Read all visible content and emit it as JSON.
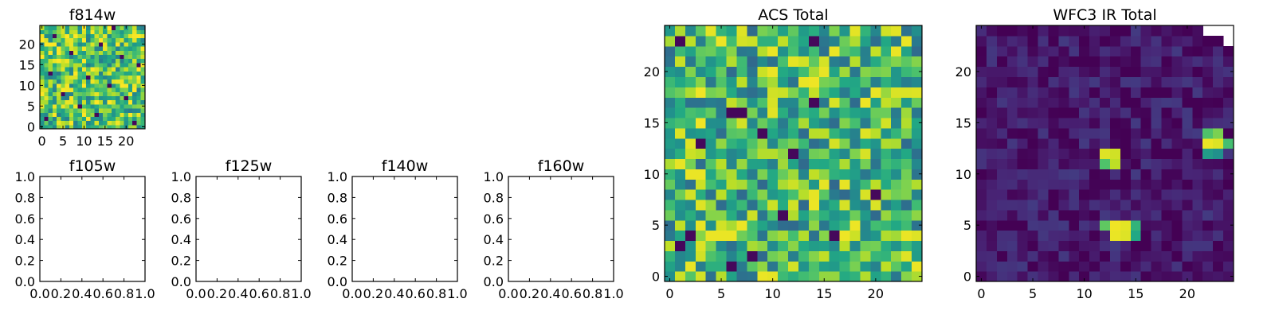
{
  "chart_data": [
    {
      "id": "f814w",
      "type": "heatmap",
      "title": "f814w",
      "colormap": "viridis",
      "xticks": [
        "0",
        "5",
        "10",
        "15",
        "20"
      ],
      "yticks": [
        "0",
        "5",
        "10",
        "15",
        "20"
      ],
      "xlim": [
        -0.5,
        24.5
      ],
      "ylim": [
        -0.5,
        24.5
      ],
      "grid": false,
      "grid_size": [
        25,
        25
      ],
      "value_range": [
        0,
        1
      ],
      "seed": 11,
      "base": 0.72,
      "spread": 0.3,
      "dark_cells": [
        [
          3,
          22
        ],
        [
          14,
          20
        ],
        [
          7,
          18
        ],
        [
          19,
          17
        ],
        [
          23,
          15
        ],
        [
          2,
          13
        ],
        [
          11,
          12
        ],
        [
          16,
          10
        ],
        [
          5,
          8
        ],
        [
          20,
          7
        ],
        [
          9,
          5
        ],
        [
          13,
          3
        ],
        [
          1,
          2
        ],
        [
          22,
          1
        ],
        [
          17,
          24
        ]
      ],
      "bright_cells": [
        [
          6,
          6
        ],
        [
          7,
          6
        ],
        [
          8,
          5
        ],
        [
          5,
          5
        ],
        [
          15,
          19
        ],
        [
          22,
          23
        ],
        [
          3,
          16
        ],
        [
          18,
          11
        ]
      ]
    },
    {
      "id": "f105w",
      "type": "heatmap",
      "title": "f105w",
      "empty": true,
      "xticks": [
        "0.0",
        "0.2",
        "0.4",
        "0.6",
        "0.8",
        "1.0"
      ],
      "yticks": [
        "0.0",
        "0.2",
        "0.4",
        "0.6",
        "0.8",
        "1.0"
      ],
      "xlim": [
        0,
        1
      ],
      "ylim": [
        0,
        1
      ]
    },
    {
      "id": "f125w",
      "type": "heatmap",
      "title": "f125w",
      "empty": true,
      "xticks": [
        "0.0",
        "0.2",
        "0.4",
        "0.6",
        "0.8",
        "1.0"
      ],
      "yticks": [
        "0.0",
        "0.2",
        "0.4",
        "0.6",
        "0.8",
        "1.0"
      ],
      "xlim": [
        0,
        1
      ],
      "ylim": [
        0,
        1
      ]
    },
    {
      "id": "f140w",
      "type": "heatmap",
      "title": "f140w",
      "empty": true,
      "xticks": [
        "0.0",
        "0.2",
        "0.4",
        "0.6",
        "0.8",
        "1.0"
      ],
      "yticks": [
        "0.0",
        "0.2",
        "0.4",
        "0.6",
        "0.8",
        "1.0"
      ],
      "xlim": [
        0,
        1
      ],
      "ylim": [
        0,
        1
      ]
    },
    {
      "id": "f160w",
      "type": "heatmap",
      "title": "f160w",
      "empty": true,
      "xticks": [
        "0.0",
        "0.2",
        "0.4",
        "0.6",
        "0.8",
        "1.0"
      ],
      "yticks": [
        "0.0",
        "0.2",
        "0.4",
        "0.6",
        "0.8",
        "1.0"
      ],
      "xlim": [
        0,
        1
      ],
      "ylim": [
        0,
        1
      ]
    },
    {
      "id": "acs-total",
      "type": "heatmap",
      "title": "ACS Total",
      "colormap": "viridis",
      "xticks": [
        "0",
        "5",
        "10",
        "15",
        "20"
      ],
      "yticks": [
        "0",
        "5",
        "10",
        "15",
        "20"
      ],
      "xlim": [
        -0.5,
        24.5
      ],
      "ylim": [
        -0.5,
        24.5
      ],
      "grid": false,
      "grid_size": [
        25,
        25
      ],
      "value_range": [
        0,
        1
      ],
      "seed": 7,
      "base": 0.66,
      "spread": 0.32,
      "dark_cells": [
        [
          14,
          23
        ],
        [
          1,
          23
        ],
        [
          6,
          16
        ],
        [
          7,
          16
        ],
        [
          14,
          17
        ],
        [
          12,
          12
        ],
        [
          20,
          8
        ],
        [
          2,
          4
        ],
        [
          1,
          3
        ],
        [
          6,
          1
        ],
        [
          8,
          2
        ],
        [
          16,
          4
        ],
        [
          11,
          6
        ],
        [
          3,
          13
        ],
        [
          9,
          14
        ]
      ],
      "bright_cells": [
        [
          2,
          10
        ],
        [
          3,
          10
        ],
        [
          4,
          4
        ],
        [
          5,
          4
        ],
        [
          6,
          4
        ],
        [
          7,
          5
        ],
        [
          13,
          19
        ],
        [
          16,
          22
        ],
        [
          22,
          22
        ],
        [
          23,
          23
        ],
        [
          20,
          18
        ],
        [
          24,
          1
        ],
        [
          10,
          20
        ]
      ]
    },
    {
      "id": "wfc3-ir-total",
      "type": "heatmap",
      "title": "WFC3 IR Total",
      "colormap": "viridis",
      "xticks": [
        "0",
        "5",
        "10",
        "15",
        "20"
      ],
      "yticks": [
        "0",
        "5",
        "10",
        "15",
        "20"
      ],
      "xlim": [
        -0.5,
        24.5
      ],
      "ylim": [
        -0.5,
        24.5
      ],
      "grid": false,
      "grid_size": [
        25,
        25
      ],
      "value_range": [
        0,
        1
      ],
      "seed": 3,
      "base": 0.07,
      "spread": 0.1,
      "missing_cells": [
        [
          22,
          24
        ],
        [
          23,
          24
        ],
        [
          24,
          24
        ],
        [
          24,
          23
        ]
      ],
      "hot_cells": [
        {
          "cell": [
            12,
            12
          ],
          "value": 0.95
        },
        {
          "cell": [
            13,
            12
          ],
          "value": 0.93
        },
        {
          "cell": [
            12,
            11
          ],
          "value": 0.72
        },
        {
          "cell": [
            13,
            11
          ],
          "value": 0.9
        },
        {
          "cell": [
            12,
            5
          ],
          "value": 0.75
        },
        {
          "cell": [
            13,
            5
          ],
          "value": 0.98
        },
        {
          "cell": [
            14,
            5
          ],
          "value": 0.96
        },
        {
          "cell": [
            15,
            5
          ],
          "value": 0.65
        },
        {
          "cell": [
            13,
            4
          ],
          "value": 0.97
        },
        {
          "cell": [
            14,
            4
          ],
          "value": 0.95
        },
        {
          "cell": [
            15,
            4
          ],
          "value": 0.6
        },
        {
          "cell": [
            22,
            14
          ],
          "value": 0.72
        },
        {
          "cell": [
            23,
            14
          ],
          "value": 0.8
        },
        {
          "cell": [
            22,
            13
          ],
          "value": 0.97
        },
        {
          "cell": [
            23,
            13
          ],
          "value": 0.95
        },
        {
          "cell": [
            24,
            13
          ],
          "value": 0.7
        },
        {
          "cell": [
            22,
            12
          ],
          "value": 0.55
        },
        {
          "cell": [
            23,
            12
          ],
          "value": 0.5
        }
      ]
    }
  ]
}
